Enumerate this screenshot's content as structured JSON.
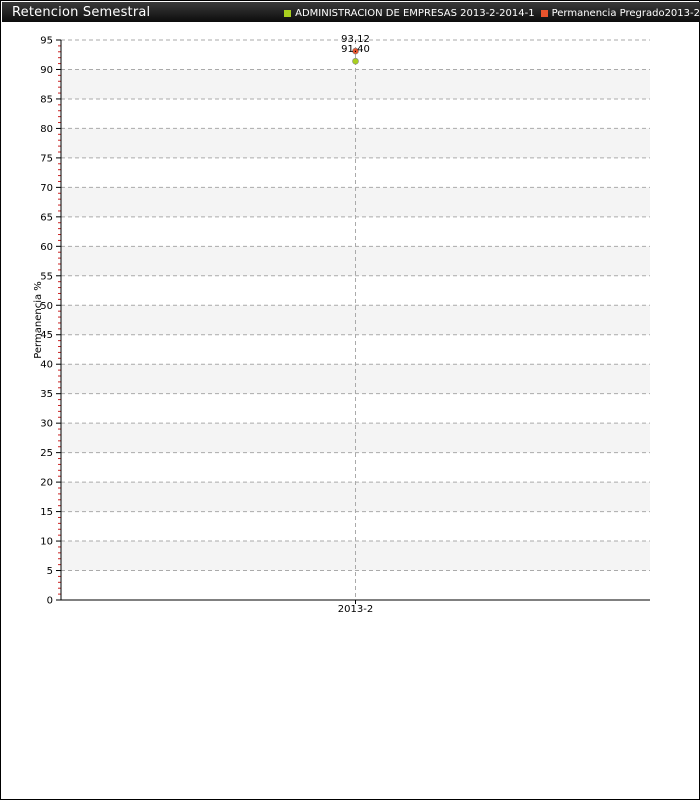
{
  "window": {
    "title": "Retencion Semestral"
  },
  "colors": {
    "series_1": "#a8cf1e",
    "series_2": "#e8542d",
    "grid": "#aaaaaa",
    "band": "#f4f4f4"
  },
  "chart_data": {
    "type": "line",
    "title": "Retencion Semestral",
    "xlabel": "",
    "ylabel": "Permanencia %",
    "categories": [
      "2013-2"
    ],
    "ylim": [
      0,
      95
    ],
    "yticks": [
      0,
      5,
      10,
      15,
      20,
      25,
      30,
      35,
      40,
      45,
      50,
      55,
      60,
      65,
      70,
      75,
      80,
      85,
      90,
      95
    ],
    "grid": true,
    "legend_position": "top-right",
    "series": [
      {
        "name": "ADMINISTRACION DE EMPRESAS 2013-2-2014-1",
        "values": [
          91.4
        ],
        "labels": [
          "91.40"
        ]
      },
      {
        "name": "Permanencia Pregrado2013-2",
        "values": [
          93.12
        ],
        "labels": [
          "93.12"
        ]
      }
    ]
  }
}
